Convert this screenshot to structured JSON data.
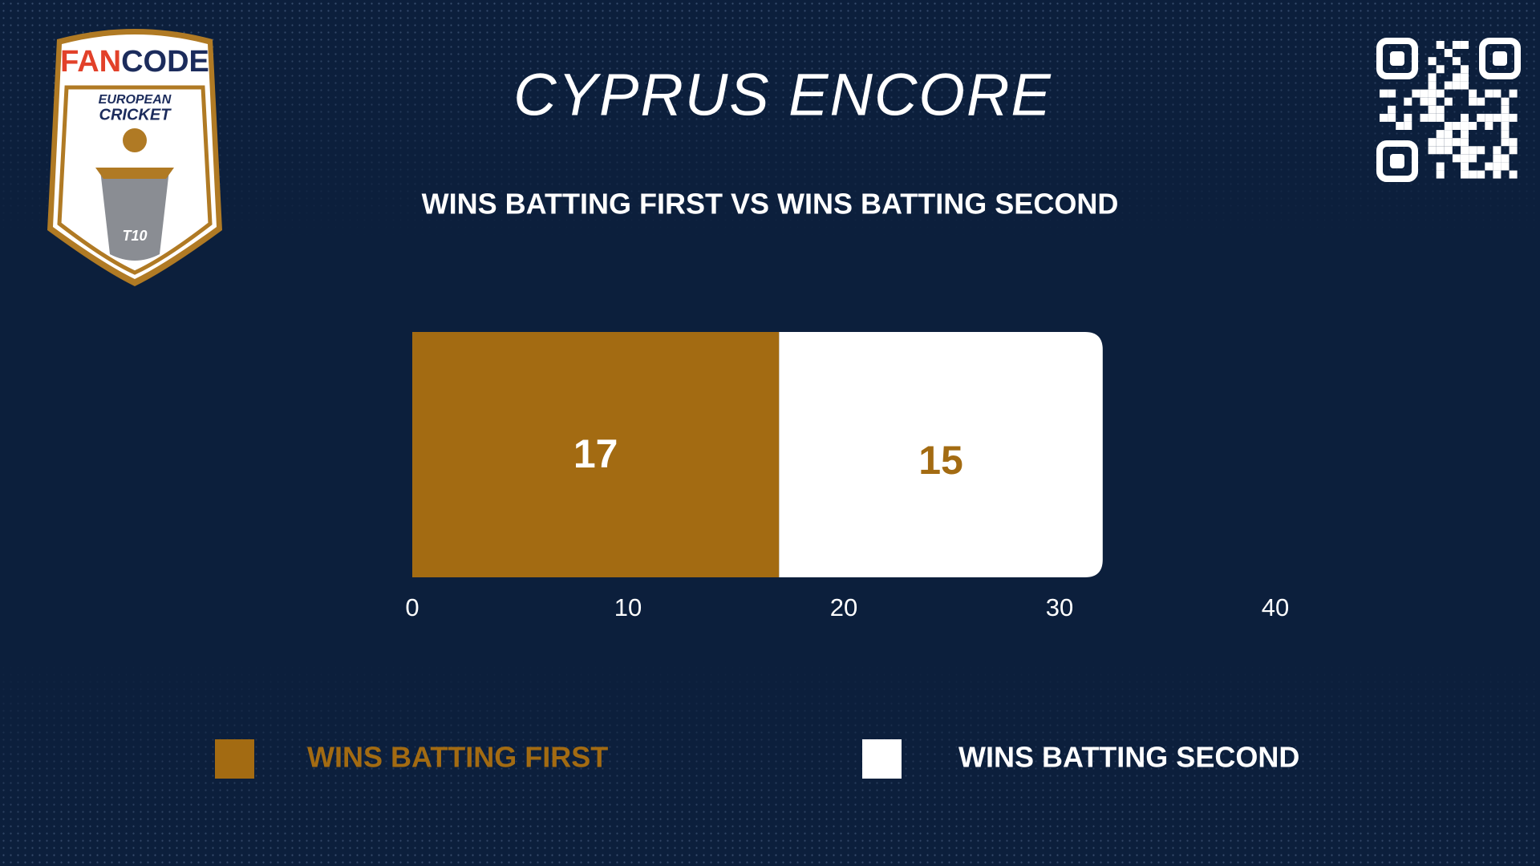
{
  "logo": {
    "brand_left": "FAN",
    "brand_right": "CODE",
    "line1": "EUROPEAN",
    "line2": "CRICKET",
    "badge": "T10"
  },
  "chart_data": {
    "type": "bar",
    "orientation": "horizontal",
    "stacked": true,
    "title": "CYPRUS ENCORE",
    "subtitle": "WINS BATTING FIRST VS WINS BATTING SECOND",
    "categories": [
      null
    ],
    "series": [
      {
        "name": "WINS BATTING FIRST",
        "color": "#a36b12",
        "label_color": "#ffffff",
        "values": [
          17
        ]
      },
      {
        "name": "WINS BATTING SECOND",
        "color": "#ffffff",
        "label_color": "#a36b12",
        "values": [
          15
        ]
      }
    ],
    "xlim": [
      0,
      40
    ],
    "xticks": [
      0,
      10,
      20,
      30,
      40
    ],
    "grid": false,
    "legend": "bottom"
  }
}
